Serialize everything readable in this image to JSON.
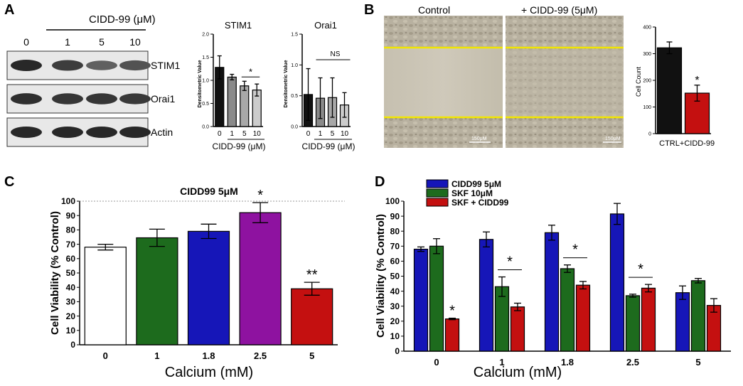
{
  "panels": {
    "A": {
      "letter": "A",
      "blot": {
        "treatment_label": "CIDD-99 (μM)",
        "lanes": [
          "0",
          "1",
          "5",
          "10"
        ],
        "rows": [
          {
            "name": "STIM1",
            "intensity": [
              1.0,
              0.85,
              0.6,
              0.7
            ]
          },
          {
            "name": "Orai1",
            "intensity": [
              0.95,
              0.9,
              0.9,
              0.88
            ]
          },
          {
            "name": "Actin",
            "intensity": [
              1.0,
              1.0,
              1.0,
              1.0
            ]
          }
        ]
      }
    },
    "B": {
      "letter": "B",
      "image_labels": [
        "Control",
        "+ CIDD-99 (5μM)"
      ],
      "scale_bar_label": "150μM"
    },
    "C": {
      "letter": "C"
    },
    "D": {
      "letter": "D"
    },
    "colors": {
      "black": "#111111",
      "grey_dark": "#8a8a8a",
      "grey_mid": "#a8a8a8",
      "grey_light": "#cccccc",
      "white": "#ffffff",
      "green": "#1d6b1d",
      "blue": "#1616b8",
      "purple": "#8e12a0",
      "red": "#c41010"
    }
  },
  "chart_data": [
    {
      "id": "A-STIM1",
      "type": "bar",
      "title": "STIM1",
      "ylabel": "Densitometric Value",
      "xlabel": "CIDD-99 (μM)",
      "ylim": [
        0,
        2.0
      ],
      "yticks": [
        "0.0",
        "0.5",
        "1.0",
        "1.5",
        "2.0"
      ],
      "categories": [
        "0",
        "1",
        "5",
        "10"
      ],
      "values": [
        1.28,
        1.07,
        0.88,
        0.79
      ],
      "errors": [
        0.25,
        0.06,
        0.1,
        0.13
      ],
      "annotation": "*"
    },
    {
      "id": "A-Orai1",
      "type": "bar",
      "title": "Orai1",
      "ylabel": "Densitometric Value",
      "xlabel": "CIDD-99 (μM)",
      "ylim": [
        0,
        1.5
      ],
      "yticks": [
        "0.0",
        "0.5",
        "1.0",
        "1.5"
      ],
      "categories": [
        "0",
        "1",
        "5",
        "10"
      ],
      "values": [
        0.52,
        0.46,
        0.47,
        0.35
      ],
      "errors": [
        0.42,
        0.33,
        0.32,
        0.2
      ],
      "annotation": "NS"
    },
    {
      "id": "B-count",
      "type": "bar",
      "ylabel": "Cell Count",
      "ylim": [
        0,
        400
      ],
      "yticks": [
        "0",
        "100",
        "200",
        "300",
        "400"
      ],
      "categories": [
        "CTRL",
        "+CIDD-99"
      ],
      "values": [
        322,
        152
      ],
      "errors": [
        22,
        30
      ],
      "annotation": "*"
    },
    {
      "id": "C",
      "type": "bar",
      "title": "CIDD99 5μM",
      "ylabel": "Cell Viability (% Control)",
      "xlabel": "Calcium (mM)",
      "ylim": [
        0,
        100
      ],
      "yticks": [
        "0",
        "10",
        "20",
        "30",
        "40",
        "50",
        "60",
        "70",
        "80",
        "90",
        "100"
      ],
      "categories": [
        "0",
        "1",
        "1.8",
        "2.5",
        "5"
      ],
      "values": [
        68,
        74.5,
        79,
        92,
        39
      ],
      "errors": [
        2,
        6,
        5,
        7,
        4.5
      ],
      "annotations": [
        "",
        "",
        "",
        "*",
        "**"
      ]
    },
    {
      "id": "D",
      "type": "bar",
      "ylabel": "Cell Viability (% Control)",
      "xlabel": "Calcium (mM)",
      "ylim": [
        0,
        100
      ],
      "yticks": [
        "0",
        "10",
        "20",
        "30",
        "40",
        "50",
        "60",
        "70",
        "80",
        "90",
        "100"
      ],
      "categories": [
        "0",
        "1",
        "1.8",
        "2.5",
        "5"
      ],
      "legend": [
        "CIDD99  5μM",
        "SKF 10μM",
        "SKF + CIDD99"
      ],
      "series": [
        {
          "name": "CIDD99  5μM",
          "values": [
            68,
            74.5,
            79,
            91.5,
            39
          ],
          "errors": [
            1.5,
            5,
            5,
            7,
            4.5
          ]
        },
        {
          "name": "SKF 10μM",
          "values": [
            70,
            43,
            55,
            37,
            47
          ],
          "errors": [
            5,
            6.5,
            2.5,
            1,
            1.5
          ]
        },
        {
          "name": "SKF + CIDD99",
          "values": [
            21.5,
            29.5,
            44,
            42,
            30.5
          ],
          "errors": [
            0.5,
            2.5,
            2.5,
            2.5,
            4.5
          ]
        }
      ],
      "annotations": [
        "*",
        "*",
        "*",
        "*",
        ""
      ]
    }
  ]
}
